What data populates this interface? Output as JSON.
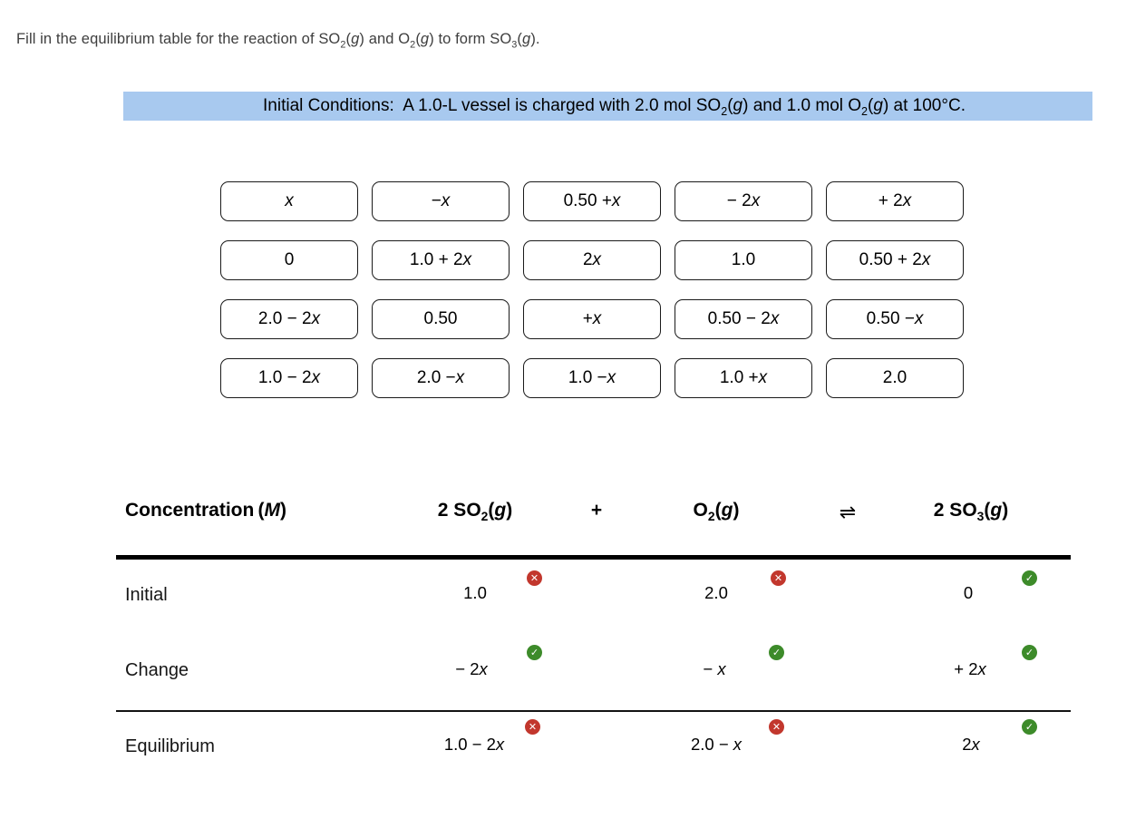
{
  "question_html": "Fill in the equilibrium table for the reaction of SO<sub>2</sub>(<i>g</i>) and O<sub>2</sub>(<i>g</i>) to form SO<sub>3</sub>(<i>g</i>).",
  "initial_conditions_html": "Initial Conditions:&nbsp; A 1.0-L vessel is charged with 2.0 mol SO<sub>2</sub>(<i>g</i>) and 1.0 mol O<sub>2</sub>(<i>g</i>) at 100°C.",
  "colors": {
    "highlight": "#a8c9ef",
    "correct": "#3d8b2a",
    "incorrect": "#c2372d"
  },
  "tiles": [
    "<i>x</i>",
    "− <i>x</i>",
    "0.50 + <i>x</i>",
    "− 2<i>x</i>",
    "+ 2<i>x</i>",
    "0",
    "1.0 + 2<i>x</i>",
    "2<i>x</i>",
    "1.0",
    "0.50 + 2<i>x</i>",
    "2.0 − 2<i>x</i>",
    "0.50",
    "+ <i>x</i>",
    "0.50 − 2<i>x</i>",
    "0.50 − <i>x</i>",
    "1.0 − 2<i>x</i>",
    "2.0 − <i>x</i>",
    "1.0 − <i>x</i>",
    "1.0 + <i>x</i>",
    "2.0"
  ],
  "table": {
    "header": {
      "concentration_html": "Concentration (<i>M</i>)",
      "so2_html": "2 SO<sub>2</sub>(<i>g</i>)",
      "plus": "+",
      "o2_html": "O<sub>2</sub>(<i>g</i>)",
      "equilibrium_arrows": "⇌",
      "so3_html": "2 SO<sub>3</sub>(<i>g</i>)"
    },
    "rows": [
      {
        "label": "Initial",
        "cells": [
          {
            "value_html": "1.0",
            "status": "incorrect"
          },
          {
            "value_html": "2.0",
            "status": "incorrect"
          },
          {
            "value_html": "0",
            "status": "correct"
          }
        ]
      },
      {
        "label": "Change",
        "cells": [
          {
            "value_html": "− 2<i>x</i>",
            "status": "correct"
          },
          {
            "value_html": "− <i>x</i>",
            "status": "correct"
          },
          {
            "value_html": "+ 2<i>x</i>",
            "status": "correct"
          }
        ]
      },
      {
        "label": "Equilibrium",
        "cells": [
          {
            "value_html": "1.0 − 2<i>x</i>",
            "status": "incorrect"
          },
          {
            "value_html": "2.0 − <i>x</i>",
            "status": "incorrect"
          },
          {
            "value_html": "2<i>x</i>",
            "status": "correct"
          }
        ]
      }
    ]
  },
  "icons": {
    "correct_glyph": "✓",
    "incorrect_glyph": "✕"
  }
}
